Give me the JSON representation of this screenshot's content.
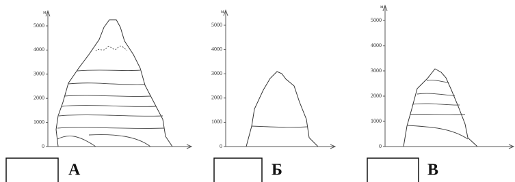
{
  "panels": [
    {
      "unit": "м",
      "ticks": [
        "0",
        "1000",
        "2000",
        "3000",
        "4000",
        "5000"
      ],
      "label": "А"
    },
    {
      "unit": "м",
      "ticks": [
        "0",
        "1000",
        "2000",
        "3000",
        "4000",
        "5000"
      ],
      "label": "Б"
    },
    {
      "unit": "м",
      "ticks": [
        "0",
        "1000",
        "2000",
        "3000",
        "4000",
        "5000"
      ],
      "label": "В"
    }
  ]
}
